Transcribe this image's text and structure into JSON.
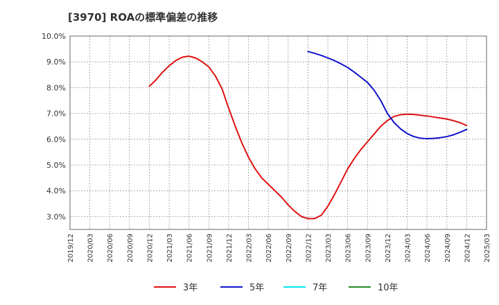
{
  "chart_data": {
    "type": "line",
    "title": "[3970]  ROAの標準偏差の推移",
    "xlabel": "",
    "ylabel": "",
    "x_categories": [
      "2019/12",
      "2020/03",
      "2020/06",
      "2020/09",
      "2020/12",
      "2021/03",
      "2021/06",
      "2021/09",
      "2021/12",
      "2022/03",
      "2022/06",
      "2022/09",
      "2022/12",
      "2023/03",
      "2023/06",
      "2023/09",
      "2023/12",
      "2024/03",
      "2024/06",
      "2024/09",
      "2024/12",
      "2025/03"
    ],
    "yticks": [
      "3.0%",
      "4.0%",
      "5.0%",
      "6.0%",
      "7.0%",
      "8.0%",
      "9.0%",
      "10.0%"
    ],
    "ylim": [
      2.5,
      10.0
    ],
    "grid": true,
    "legend_position": "bottom",
    "series": [
      {
        "name": "3年",
        "color": "#dd1111",
        "points": [
          [
            "2020/12",
            8.05
          ],
          [
            "2021/01",
            8.3
          ],
          [
            "2021/02",
            8.6
          ],
          [
            "2021/03",
            8.85
          ],
          [
            "2021/04",
            9.05
          ],
          [
            "2021/05",
            9.18
          ],
          [
            "2021/06",
            9.22
          ],
          [
            "2021/07",
            9.15
          ],
          [
            "2021/08",
            9.0
          ],
          [
            "2021/09",
            8.8
          ],
          [
            "2021/10",
            8.45
          ],
          [
            "2021/11",
            7.95
          ],
          [
            "2021/12",
            7.2
          ],
          [
            "2022/01",
            6.5
          ],
          [
            "2022/02",
            5.85
          ],
          [
            "2022/03",
            5.3
          ],
          [
            "2022/04",
            4.85
          ],
          [
            "2022/05",
            4.5
          ],
          [
            "2022/06",
            4.25
          ],
          [
            "2022/07",
            4.0
          ],
          [
            "2022/08",
            3.75
          ],
          [
            "2022/09",
            3.45
          ],
          [
            "2022/10",
            3.2
          ],
          [
            "2022/11",
            3.0
          ],
          [
            "2022/12",
            2.92
          ],
          [
            "2023/01",
            2.92
          ],
          [
            "2023/02",
            3.05
          ],
          [
            "2023/03",
            3.4
          ],
          [
            "2023/04",
            3.85
          ],
          [
            "2023/05",
            4.35
          ],
          [
            "2023/06",
            4.85
          ],
          [
            "2023/07",
            5.25
          ],
          [
            "2023/08",
            5.6
          ],
          [
            "2023/09",
            5.9
          ],
          [
            "2023/10",
            6.2
          ],
          [
            "2023/11",
            6.5
          ],
          [
            "2023/12",
            6.72
          ],
          [
            "2024/01",
            6.88
          ],
          [
            "2024/02",
            6.95
          ],
          [
            "2024/03",
            6.97
          ],
          [
            "2024/04",
            6.96
          ],
          [
            "2024/05",
            6.93
          ],
          [
            "2024/06",
            6.9
          ],
          [
            "2024/07",
            6.86
          ],
          [
            "2024/08",
            6.82
          ],
          [
            "2024/09",
            6.78
          ],
          [
            "2024/10",
            6.72
          ],
          [
            "2024/11",
            6.64
          ],
          [
            "2024/12",
            6.53
          ]
        ]
      },
      {
        "name": "5年",
        "color": "#1111cc",
        "points": [
          [
            "2022/12",
            9.4
          ],
          [
            "2023/01",
            9.33
          ],
          [
            "2023/02",
            9.25
          ],
          [
            "2023/03",
            9.15
          ],
          [
            "2023/04",
            9.05
          ],
          [
            "2023/05",
            8.92
          ],
          [
            "2023/06",
            8.78
          ],
          [
            "2023/07",
            8.6
          ],
          [
            "2023/08",
            8.4
          ],
          [
            "2023/09",
            8.2
          ],
          [
            "2023/10",
            7.9
          ],
          [
            "2023/11",
            7.5
          ],
          [
            "2023/12",
            7.0
          ],
          [
            "2024/01",
            6.65
          ],
          [
            "2024/02",
            6.4
          ],
          [
            "2024/03",
            6.22
          ],
          [
            "2024/04",
            6.1
          ],
          [
            "2024/05",
            6.04
          ],
          [
            "2024/06",
            6.02
          ],
          [
            "2024/07",
            6.03
          ],
          [
            "2024/08",
            6.06
          ],
          [
            "2024/09",
            6.1
          ],
          [
            "2024/10",
            6.17
          ],
          [
            "2024/11",
            6.27
          ],
          [
            "2024/12",
            6.38
          ]
        ]
      },
      {
        "name": "7年",
        "color": "#00e5ee",
        "points": []
      },
      {
        "name": "10年",
        "color": "#228b22",
        "points": []
      }
    ]
  }
}
